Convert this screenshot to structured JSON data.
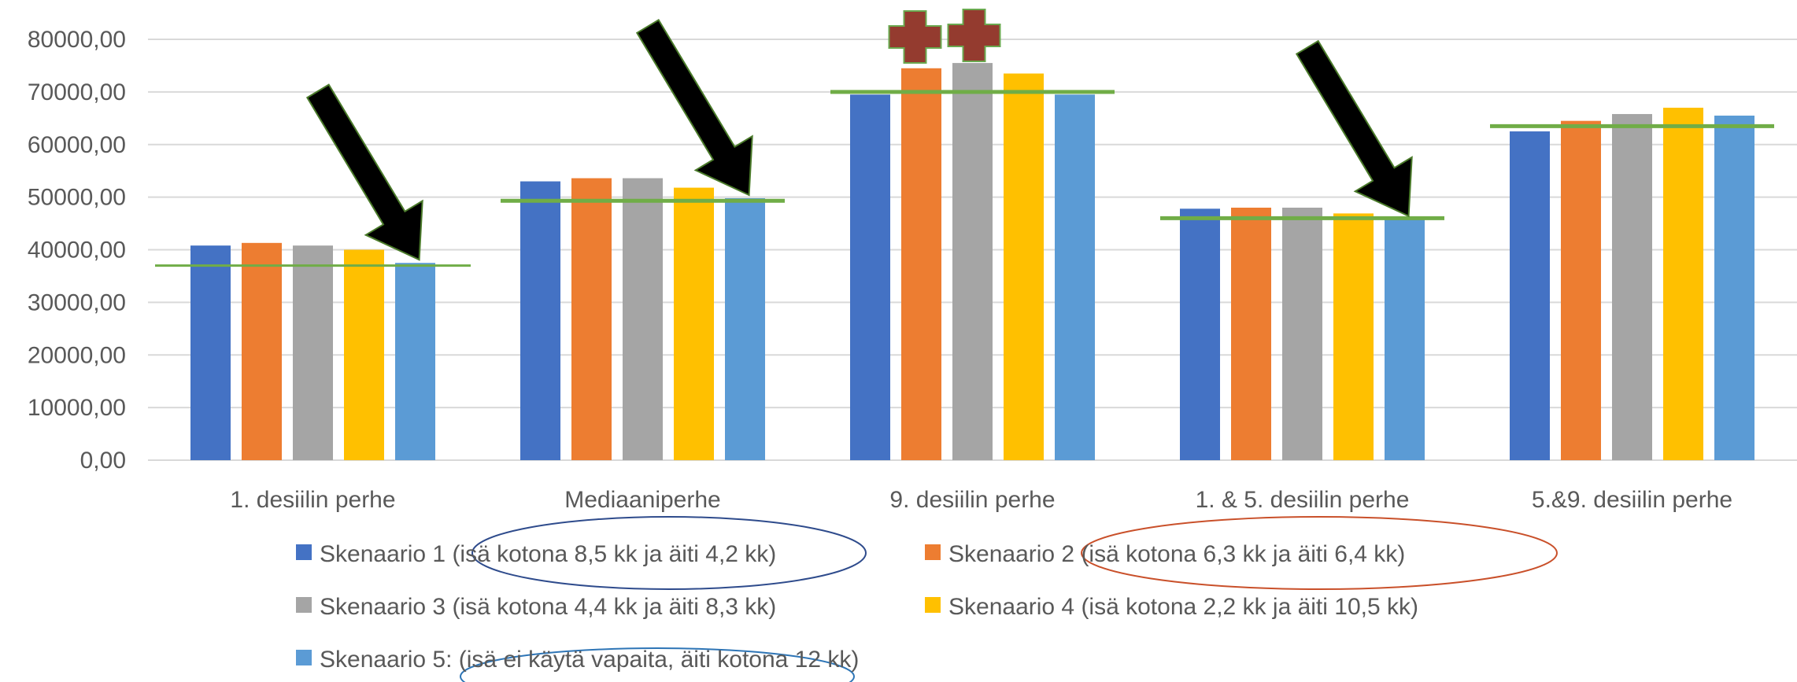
{
  "chart_data": {
    "type": "bar",
    "title": "",
    "xlabel": "",
    "ylabel": "",
    "ylim": [
      0,
      80000
    ],
    "yticks": [
      "0,00",
      "10000,00",
      "20000,00",
      "30000,00",
      "40000,00",
      "50000,00",
      "60000,00",
      "70000,00",
      "80000,00"
    ],
    "grid": true,
    "legend_position": "bottom",
    "categories": [
      "1. desiilin perhe",
      "Mediaaniperhe",
      "9. desiilin perhe",
      "1. & 5. desiilin perhe",
      "5.&9. desiilin perhe"
    ],
    "series": [
      {
        "name": "Skenaario 1 (isä kotona 8,5 kk ja äiti 4,2 kk)",
        "color": "#4472C4",
        "values": [
          40800,
          53000,
          69500,
          47800,
          62500
        ]
      },
      {
        "name": "Skenaario 2 (isä kotona 6,3 kk ja äiti 6,4 kk)",
        "color": "#ED7D31",
        "values": [
          41300,
          53600,
          74500,
          48000,
          64500
        ]
      },
      {
        "name": "Skenaario 3 (isä kotona 4,4 kk ja äiti 8,3 kk)",
        "color": "#A5A5A5",
        "values": [
          40800,
          53600,
          75500,
          48000,
          65800
        ]
      },
      {
        "name": "Skenaario 4 (isä kotona 2,2 kk ja äiti 10,5 kk)",
        "color": "#FFC000",
        "values": [
          40000,
          51800,
          73500,
          46900,
          67000
        ]
      },
      {
        "name": "Skenaario 5: (isä ei käytä vapaita, äiti kotona 12 kk)",
        "color": "#5B9BD5",
        "values": [
          37500,
          49800,
          69500,
          45800,
          65500
        ]
      }
    ],
    "annotations": {
      "reference_lines": [
        37000,
        49300,
        70000,
        46000,
        63500
      ],
      "reference_line_color": "#70AD47",
      "arrow_categories": [
        0,
        1,
        3
      ],
      "plus_category": 2,
      "plus_color": "#943B2F",
      "arrow_color": "#000000",
      "circled_legend_items": [
        {
          "series": 0,
          "color": "#2E4B8C"
        },
        {
          "series": 1,
          "color": "#C9502A"
        },
        {
          "series": 4,
          "color": "#2E75B6"
        }
      ]
    }
  }
}
